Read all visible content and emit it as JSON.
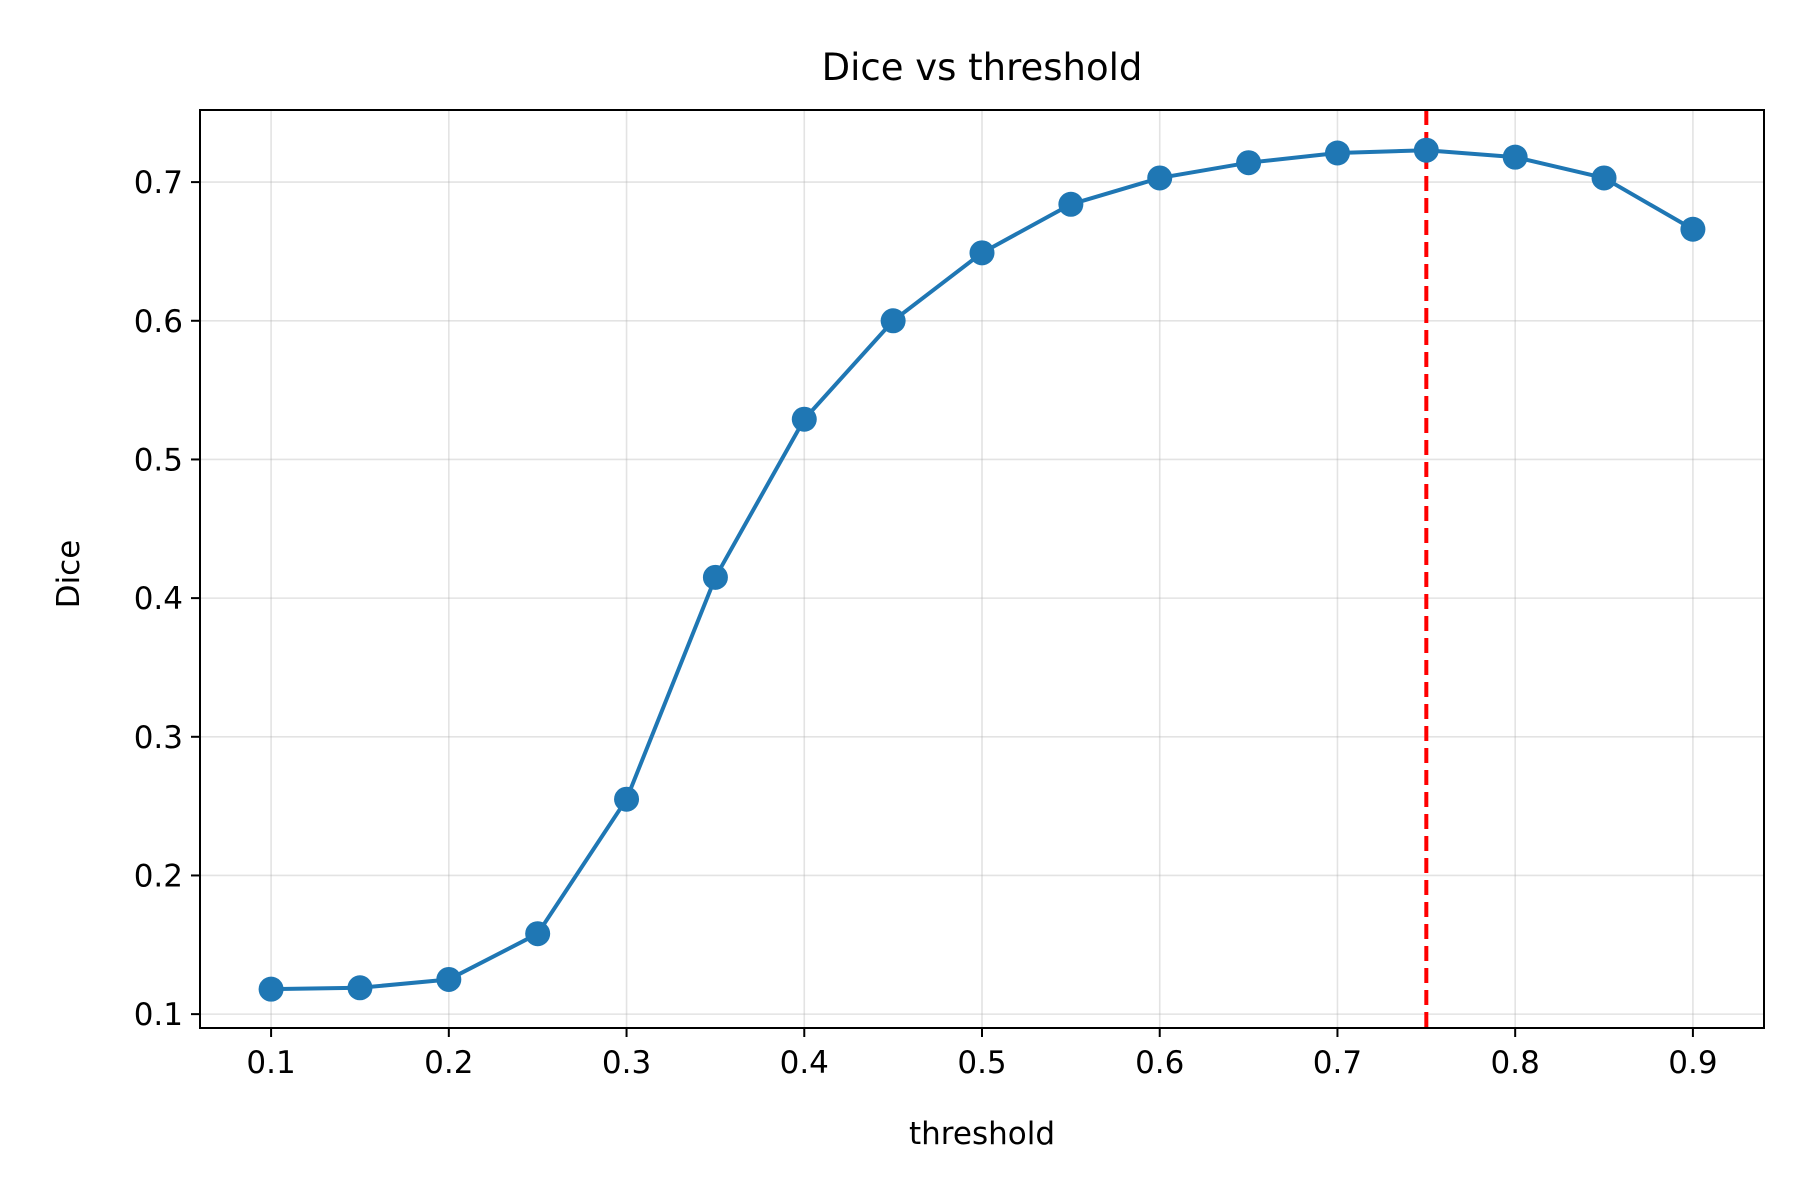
{
  "chart_data": {
    "type": "line",
    "title": "Dice vs threshold",
    "xlabel": "threshold",
    "ylabel": "Dice",
    "xlim": [
      0.06,
      0.94
    ],
    "ylim": [
      0.09,
      0.752
    ],
    "xticks": [
      0.1,
      0.2,
      0.3,
      0.4,
      0.5,
      0.6,
      0.7,
      0.8,
      0.9
    ],
    "xtick_labels": [
      "0.1",
      "0.2",
      "0.3",
      "0.4",
      "0.5",
      "0.6",
      "0.7",
      "0.8",
      "0.9"
    ],
    "yticks": [
      0.1,
      0.2,
      0.3,
      0.4,
      0.5,
      0.6,
      0.7
    ],
    "ytick_labels": [
      "0.1",
      "0.2",
      "0.3",
      "0.4",
      "0.5",
      "0.6",
      "0.7"
    ],
    "grid": true,
    "series": [
      {
        "x": [
          0.1,
          0.15,
          0.2,
          0.25,
          0.3,
          0.35,
          0.4,
          0.45,
          0.5,
          0.55,
          0.6,
          0.65,
          0.7,
          0.75,
          0.8,
          0.85,
          0.9
        ],
        "values": [
          0.118,
          0.119,
          0.125,
          0.158,
          0.255,
          0.415,
          0.529,
          0.6,
          0.649,
          0.684,
          0.703,
          0.714,
          0.721,
          0.723,
          0.718,
          0.703,
          0.666
        ],
        "color": "#1f77b4",
        "marker": "circle"
      }
    ],
    "reference_line": {
      "orientation": "vertical",
      "x": 0.75,
      "color": "#ff0000",
      "style": "dashed"
    }
  }
}
